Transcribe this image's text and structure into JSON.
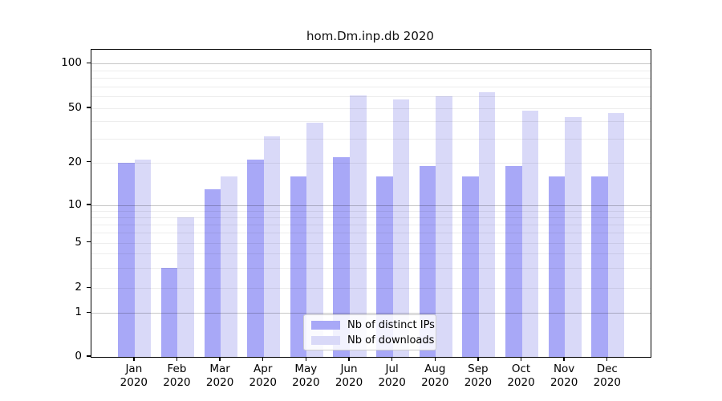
{
  "title": "hom.Dm.inp.db 2020",
  "colors": {
    "distinct_ips": "#a8a8f7",
    "downloads": "#d9d9f8",
    "spine": "#000000",
    "legend_border": "#cccccc"
  },
  "y_axis": {
    "tick_labels": [
      "100",
      "50",
      "20",
      "10",
      "5",
      "2",
      "1",
      "0"
    ],
    "tick_values": [
      100,
      50,
      20,
      10,
      5,
      2,
      1,
      0
    ],
    "major_grid_values": [
      100,
      10,
      1
    ],
    "minor_grid_values": [
      90,
      80,
      70,
      60,
      50,
      40,
      30,
      20,
      9,
      8,
      7,
      6,
      5,
      4,
      3,
      2
    ]
  },
  "x_axis": {
    "months": [
      "Jan",
      "Feb",
      "Mar",
      "Apr",
      "May",
      "Jun",
      "Jul",
      "Aug",
      "Sep",
      "Oct",
      "Nov",
      "Dec"
    ],
    "year": "2020"
  },
  "legend": {
    "entries": [
      {
        "label": "Nb of distinct IPs",
        "series": "distinct_ips"
      },
      {
        "label": "Nb of downloads",
        "series": "downloads"
      }
    ]
  },
  "chart_data": {
    "type": "bar",
    "title": "hom.Dm.inp.db 2020",
    "categories": [
      "Jan 2020",
      "Feb 2020",
      "Mar 2020",
      "Apr 2020",
      "May 2020",
      "Jun 2020",
      "Jul 2020",
      "Aug 2020",
      "Sep 2020",
      "Oct 2020",
      "Nov 2020",
      "Dec 2020"
    ],
    "series": [
      {
        "name": "Nb of distinct IPs",
        "key": "distinct_ips",
        "values": [
          20,
          3,
          13,
          21,
          16,
          22,
          16,
          19,
          16,
          19,
          16,
          16
        ]
      },
      {
        "name": "Nb of downloads",
        "key": "downloads",
        "values": [
          21,
          8,
          16,
          31,
          39,
          61,
          57,
          60,
          64,
          48,
          43,
          46
        ]
      }
    ],
    "yscale": "symlog",
    "ylim": [
      0,
      125
    ],
    "grid": "horizontal, log-spaced, drawn over bars",
    "legend_position": "lower center inside plot"
  }
}
